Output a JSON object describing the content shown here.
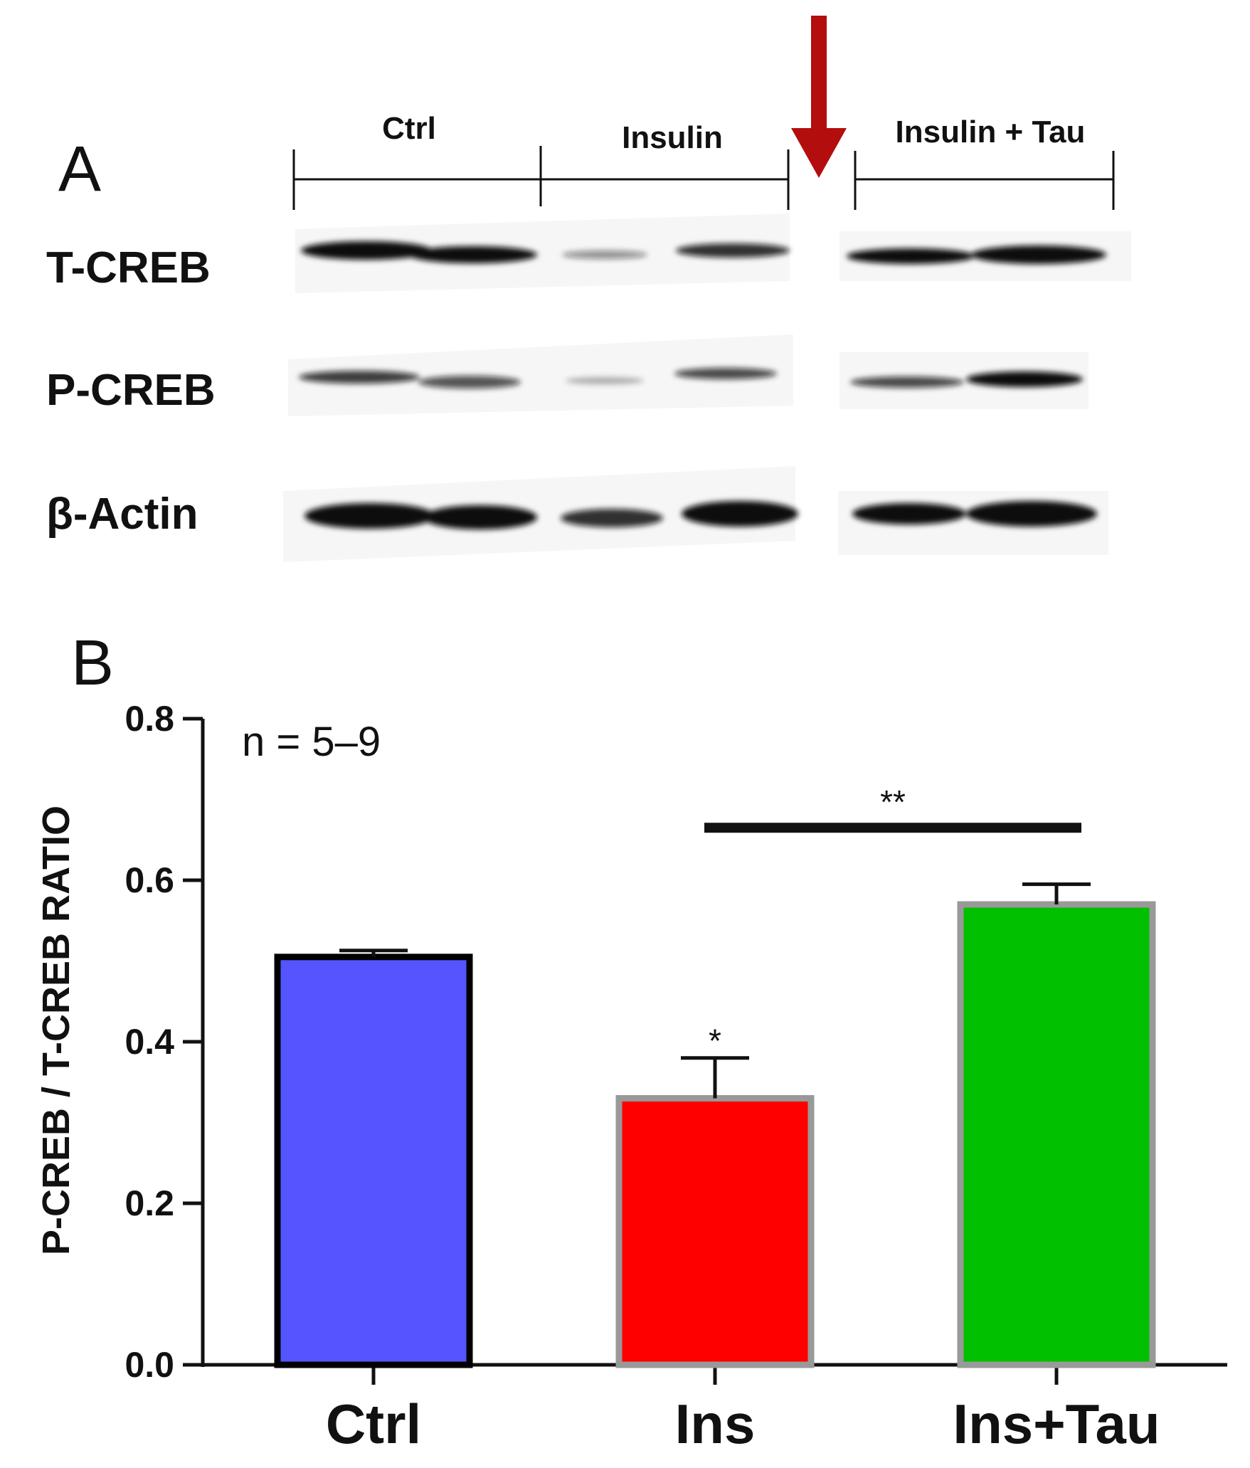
{
  "panel_a": {
    "label": "A",
    "groups": [
      "Ctrl",
      "Insulin",
      "Insulin + Tau"
    ],
    "rows": [
      "T-CREB",
      "P-CREB",
      "β-Actin"
    ],
    "arrow_color": "#b30d0d",
    "band_color": "#101010"
  },
  "panel_b": {
    "label": "B",
    "annotation": "n =  5–9"
  },
  "chart_data": {
    "type": "bar",
    "title": "",
    "xlabel": "",
    "ylabel": "P-CREB / T-CREB RATIO",
    "categories": [
      "Ctrl",
      "Ins",
      "Ins+Tau"
    ],
    "values": [
      0.505,
      0.33,
      0.57
    ],
    "errors": [
      0.008,
      0.05,
      0.025
    ],
    "colors": [
      "#5555ff",
      "#ff0000",
      "#00c000"
    ],
    "border_colors": [
      "#000000",
      "#999999",
      "#999999"
    ],
    "ylim": [
      0,
      0.8
    ],
    "yticks": [
      0.0,
      0.2,
      0.4,
      0.6,
      0.8
    ],
    "ytick_labels": [
      "0.0",
      "0.2",
      "0.4",
      "0.6",
      "0.8"
    ],
    "significance": [
      {
        "label": "*",
        "over": "Ins"
      },
      {
        "label": "**",
        "from": "Ins",
        "to": "Ins+Tau"
      }
    ],
    "grid": false
  }
}
